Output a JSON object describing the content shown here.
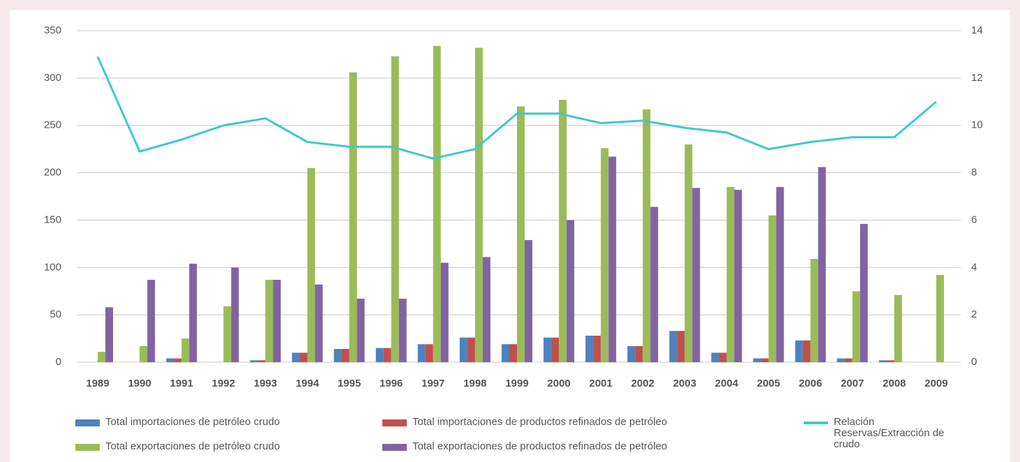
{
  "chart_data": {
    "type": "bar",
    "categories": [
      "1989",
      "1990",
      "1991",
      "1992",
      "1993",
      "1994",
      "1995",
      "1996",
      "1997",
      "1998",
      "1999",
      "2000",
      "2001",
      "2002",
      "2003",
      "2004",
      "2005",
      "2006",
      "2007",
      "2008",
      "2009"
    ],
    "series": [
      {
        "name": "Total importaciones de petróleo crudo",
        "color": "#4f81bd",
        "values": [
          0,
          0,
          4,
          0,
          2,
          10,
          14,
          15,
          19,
          26,
          19,
          26,
          28,
          17,
          33,
          10,
          4,
          23,
          4,
          2,
          0
        ]
      },
      {
        "name": "Total importaciones de productos refinados de petróleo",
        "color": "#c0504d",
        "values": [
          0,
          0,
          4,
          0,
          2,
          10,
          14,
          15,
          19,
          26,
          19,
          26,
          28,
          17,
          33,
          10,
          4,
          23,
          4,
          2,
          0
        ]
      },
      {
        "name": "Total exportaciones de petróleo crudo",
        "color": "#9bbb59",
        "values": [
          11,
          17,
          25,
          59,
          87,
          205,
          306,
          323,
          334,
          332,
          270,
          277,
          226,
          267,
          230,
          185,
          155,
          109,
          75,
          71,
          92
        ]
      },
      {
        "name": "Total exportaciones de productos refinados de petróleo",
        "color": "#8064a2",
        "values": [
          58,
          87,
          104,
          100,
          87,
          82,
          67,
          67,
          105,
          111,
          129,
          150,
          217,
          164,
          184,
          182,
          185,
          206,
          146,
          0,
          0
        ]
      },
      {
        "name": "Relación Reservas/Extracción de crudo",
        "color": "#3ec9cb",
        "type": "line",
        "axis": "y2",
        "values": [
          12.9,
          8.9,
          9.4,
          10.0,
          10.3,
          9.3,
          9.1,
          9.1,
          8.6,
          9.0,
          10.5,
          10.5,
          10.1,
          10.2,
          9.9,
          9.7,
          9.0,
          9.3,
          9.5,
          9.5,
          11.0
        ]
      }
    ],
    "ylim": [
      0,
      350
    ],
    "yticks": [
      0,
      50,
      100,
      150,
      200,
      250,
      300,
      350
    ],
    "y2lim": [
      0,
      14
    ],
    "y2ticks": [
      0,
      2,
      4,
      6,
      8,
      10,
      12,
      14
    ],
    "grid": true
  }
}
